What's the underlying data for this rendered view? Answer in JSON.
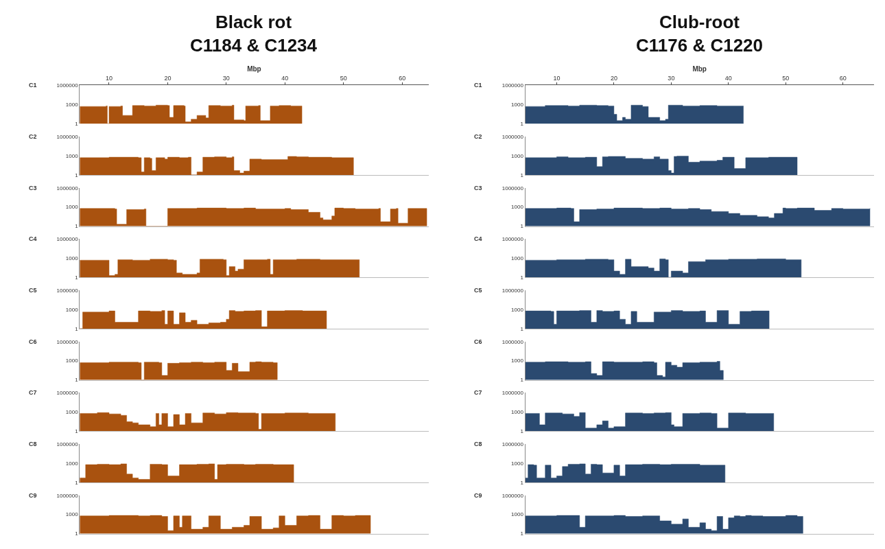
{
  "chart_data": [
    {
      "type": "area",
      "title": "Black rot\nC1184 & C1234",
      "xlabel": "Mbp",
      "ylabel": "C1",
      "xlim": [
        5,
        64.5
      ],
      "xticks": [
        10,
        20,
        30,
        40,
        50,
        60
      ],
      "ylim": [
        1,
        1000000
      ],
      "yticks": [
        1,
        1000,
        1000000
      ],
      "log": true,
      "x": [
        5,
        9.5,
        9.7,
        10,
        12,
        12.3,
        14,
        16,
        18,
        20,
        20.3,
        21,
        22.8,
        23,
        24,
        25,
        26.5,
        27,
        29,
        31,
        31.3,
        33,
        33.3,
        35.5,
        35.8,
        37.2,
        37.5,
        39,
        41,
        42.9
      ],
      "series": [
        {
          "color": "#a9520f",
          "values": [
            500,
            600,
            1,
            500,
            600,
            20,
            700,
            600,
            800,
            700,
            10,
            700,
            600,
            2,
            5,
            20,
            8,
            700,
            600,
            800,
            4,
            3,
            600,
            700,
            3,
            3,
            600,
            700,
            600,
            600
          ]
        }
      ]
    },
    {
      "type": "area",
      "title": "Club-root\nC1176 & C1220",
      "xlabel": "Mbp",
      "ylabel": "C1",
      "xlim": [
        4.5,
        65.4
      ],
      "xticks": [
        10,
        20,
        30,
        40,
        50,
        60
      ],
      "ylim": [
        1,
        1000000
      ],
      "yticks": [
        1,
        1000,
        1000000
      ],
      "log": true,
      "x": [
        4.5,
        8,
        12,
        14,
        17,
        19,
        20,
        20.5,
        21.5,
        22,
        23,
        25,
        26,
        28,
        29,
        29.5,
        32,
        35,
        38,
        42.6
      ],
      "series": [
        {
          "color": "#2b4a70",
          "values": [
            500,
            700,
            600,
            800,
            700,
            600,
            30,
            3,
            10,
            5,
            800,
            500,
            10,
            3,
            5,
            800,
            600,
            700,
            600,
            600
          ]
        }
      ]
    },
    {
      "type": "area",
      "ylabel": "C2",
      "xlim": [
        5,
        64.5
      ],
      "ylim": [
        1,
        1000000
      ],
      "yticks": [
        1,
        1000,
        1000000
      ],
      "log": true,
      "tick_labels": "y",
      "x": [
        5,
        10,
        15,
        15.5,
        16,
        17,
        17.3,
        18,
        19.5,
        20,
        22,
        23.5,
        24,
        25,
        26,
        28,
        30,
        31,
        31.3,
        32.3,
        33,
        34,
        36,
        40,
        40.5,
        42,
        44,
        48,
        51.7
      ],
      "series": [
        {
          "color": "#a9520f",
          "values": [
            500,
            600,
            500,
            3,
            500,
            400,
            5,
            500,
            300,
            600,
            500,
            600,
            1,
            3,
            600,
            700,
            500,
            700,
            5,
            2,
            4,
            300,
            250,
            250,
            800,
            700,
            600,
            500,
            500
          ]
        }
      ]
    },
    {
      "type": "area",
      "ylabel": "C2",
      "xlim": [
        4.5,
        65.4
      ],
      "ylim": [
        1,
        1000000
      ],
      "yticks": [
        1,
        1000,
        1000000
      ],
      "log": true,
      "tick_labels": "y",
      "x": [
        4.5,
        10,
        12,
        15,
        17,
        18,
        19,
        22,
        25,
        27,
        28,
        29.5,
        30,
        30.5,
        31,
        33,
        35,
        38,
        39,
        41,
        43,
        47,
        52
      ],
      "series": [
        {
          "color": "#2b4a70",
          "values": [
            500,
            700,
            500,
            600,
            20,
            700,
            800,
            400,
            300,
            700,
            300,
            5,
            2,
            800,
            900,
            100,
            150,
            200,
            600,
            10,
            500,
            600,
            500
          ]
        }
      ]
    },
    {
      "type": "area",
      "ylabel": "C3",
      "xlim": [
        5,
        64.5
      ],
      "ylim": [
        1,
        1000000
      ],
      "yticks": [
        1,
        1000,
        1000000
      ],
      "log": true,
      "tick_labels": "y",
      "x": [
        5,
        11,
        11.3,
        13,
        16,
        16.3,
        20,
        25,
        30,
        33,
        35,
        40,
        41,
        44,
        46,
        46.5,
        48,
        48.5,
        50,
        52,
        56,
        56.3,
        58,
        59,
        59.3,
        61,
        64.2
      ],
      "series": [
        {
          "color": "#a9520f",
          "values": [
            600,
            500,
            2,
            400,
            500,
            1,
            600,
            700,
            600,
            700,
            500,
            600,
            400,
            150,
            20,
            10,
            40,
            700,
            600,
            500,
            600,
            5,
            500,
            600,
            3,
            600,
            600
          ]
        }
      ]
    },
    {
      "type": "area",
      "ylabel": "C3",
      "xlim": [
        4.5,
        65.4
      ],
      "ylim": [
        1,
        1000000
      ],
      "yticks": [
        1,
        1000,
        1000000
      ],
      "log": true,
      "tick_labels": "y",
      "x": [
        4.5,
        10,
        12.5,
        13,
        14,
        17,
        20,
        25,
        28,
        30,
        33,
        35,
        37,
        40,
        42,
        45,
        47,
        48,
        49.5,
        50,
        52,
        55,
        58,
        60,
        64.7
      ],
      "series": [
        {
          "color": "#2b4a70",
          "values": [
            600,
            700,
            600,
            5,
            400,
            500,
            700,
            600,
            700,
            500,
            600,
            400,
            200,
            100,
            50,
            30,
            20,
            100,
            700,
            600,
            700,
            300,
            600,
            500,
            600
          ]
        }
      ]
    },
    {
      "type": "area",
      "ylabel": "C4",
      "xlim": [
        5,
        64.5
      ],
      "ylim": [
        1,
        1000000
      ],
      "yticks": [
        1,
        1000,
        1000000
      ],
      "log": true,
      "tick_labels": "y",
      "x": [
        5,
        9.5,
        10,
        11,
        11.5,
        14,
        17,
        20,
        21,
        21.5,
        22.5,
        25,
        25.5,
        29.5,
        30,
        30.5,
        31.5,
        32,
        33,
        37,
        37.5,
        38,
        42,
        46,
        50,
        52.7
      ],
      "series": [
        {
          "color": "#a9520f",
          "values": [
            500,
            500,
            2,
            3,
            600,
            500,
            700,
            600,
            500,
            5,
            3,
            5,
            700,
            600,
            2,
            50,
            10,
            20,
            600,
            700,
            3,
            600,
            700,
            600,
            600,
            500
          ]
        }
      ]
    },
    {
      "type": "area",
      "ylabel": "C4",
      "xlim": [
        4.5,
        65.4
      ],
      "ylim": [
        1,
        1000000
      ],
      "yticks": [
        1,
        1000,
        1000000
      ],
      "log": true,
      "tick_labels": "y",
      "x": [
        4.5,
        10,
        15,
        19,
        20,
        21,
        22,
        23,
        26,
        27,
        28,
        29,
        29.5,
        30,
        32,
        33,
        36,
        40,
        45,
        50,
        52.7
      ],
      "series": [
        {
          "color": "#2b4a70",
          "values": [
            500,
            600,
            700,
            600,
            10,
            3,
            700,
            50,
            30,
            10,
            800,
            600,
            1,
            10,
            5,
            300,
            600,
            700,
            800,
            600,
            500
          ]
        }
      ]
    },
    {
      "type": "area",
      "ylabel": "C5",
      "xlim": [
        5,
        64.5
      ],
      "ylim": [
        1,
        1000000
      ],
      "yticks": [
        1,
        1000,
        1000000
      ],
      "log": true,
      "tick_labels": "y",
      "x": [
        5,
        5.5,
        10,
        11,
        15,
        17,
        19,
        19.5,
        20,
        21,
        22,
        23,
        24,
        25,
        27,
        29,
        30,
        30.5,
        31.5,
        33,
        35,
        36,
        37,
        40,
        43,
        47.1
      ],
      "series": [
        {
          "color": "#a9520f",
          "values": [
            1,
            400,
            600,
            10,
            600,
            500,
            700,
            5,
            600,
            5,
            300,
            10,
            20,
            5,
            8,
            10,
            30,
            700,
            500,
            600,
            700,
            2,
            600,
            700,
            600,
            400
          ]
        }
      ]
    },
    {
      "type": "area",
      "ylabel": "C5",
      "xlim": [
        4.5,
        65.4
      ],
      "ylim": [
        1,
        1000000
      ],
      "yticks": [
        1,
        1000,
        1000000
      ],
      "log": true,
      "tick_labels": "y",
      "x": [
        4.5,
        9,
        9.5,
        10,
        14,
        16,
        17,
        18,
        20,
        21,
        22,
        23,
        24,
        27,
        30,
        32,
        35,
        36,
        38,
        40,
        42,
        44,
        47.1
      ],
      "series": [
        {
          "color": "#2b4a70",
          "values": [
            600,
            500,
            5,
            600,
            700,
            10,
            700,
            500,
            600,
            30,
            5,
            500,
            10,
            400,
            700,
            500,
            600,
            10,
            700,
            5,
            500,
            600,
            500
          ]
        }
      ]
    },
    {
      "type": "area",
      "ylabel": "C6",
      "xlim": [
        5,
        64.5
      ],
      "ylim": [
        1,
        1000000
      ],
      "yticks": [
        1,
        1000,
        1000000
      ],
      "log": true,
      "tick_labels": "y",
      "x": [
        5,
        10,
        15,
        15.5,
        16,
        18.5,
        19,
        20,
        22,
        24,
        26,
        28,
        30,
        31,
        32,
        34,
        35,
        36,
        38,
        38.7
      ],
      "series": [
        {
          "color": "#a9520f",
          "values": [
            500,
            600,
            500,
            1,
            600,
            500,
            5,
            400,
            500,
            600,
            500,
            600,
            30,
            400,
            20,
            600,
            700,
            600,
            500,
            3
          ]
        }
      ]
    },
    {
      "type": "area",
      "ylabel": "C6",
      "xlim": [
        4.5,
        65.4
      ],
      "ylim": [
        1,
        1000000
      ],
      "yticks": [
        1,
        1000,
        1000000
      ],
      "log": true,
      "tick_labels": "y",
      "x": [
        4.5,
        8,
        12,
        15,
        16,
        17,
        18,
        20,
        25,
        27,
        27.5,
        28.5,
        29,
        30,
        31,
        32,
        35,
        38,
        38.5,
        39.1
      ],
      "series": [
        {
          "color": "#2b4a70",
          "values": [
            600,
            700,
            600,
            700,
            10,
            5,
            700,
            600,
            700,
            500,
            5,
            3,
            600,
            200,
            100,
            500,
            600,
            800,
            30,
            10
          ]
        }
      ]
    },
    {
      "type": "area",
      "ylabel": "C7",
      "xlim": [
        5,
        64.5
      ],
      "ylim": [
        1,
        1000000
      ],
      "yticks": [
        1,
        1000,
        1000000
      ],
      "log": true,
      "tick_labels": "y",
      "x": [
        5,
        8,
        10,
        12,
        13,
        14,
        15,
        17,
        18,
        18.5,
        19,
        20,
        21,
        22,
        23,
        24,
        26,
        28,
        30,
        32,
        35,
        35.5,
        36,
        40,
        44,
        48.6
      ],
      "series": [
        {
          "color": "#a9520f",
          "values": [
            600,
            800,
            500,
            300,
            30,
            20,
            10,
            5,
            600,
            10,
            600,
            5,
            400,
            10,
            600,
            20,
            700,
            500,
            800,
            700,
            600,
            2,
            600,
            700,
            600,
            500
          ]
        }
      ]
    },
    {
      "type": "area",
      "ylabel": "C7",
      "xlim": [
        4.5,
        65.4
      ],
      "ylim": [
        1,
        1000000
      ],
      "yticks": [
        1,
        1000,
        1000000
      ],
      "log": true,
      "tick_labels": "y",
      "x": [
        4.5,
        7,
        8,
        11,
        13,
        14,
        15,
        17,
        18,
        19,
        20,
        22,
        25,
        27,
        29,
        30,
        30.5,
        32,
        35,
        37,
        38,
        40,
        43,
        47.9
      ],
      "series": [
        {
          "color": "#2b4a70",
          "values": [
            600,
            10,
            700,
            500,
            200,
            800,
            3,
            10,
            40,
            3,
            5,
            700,
            600,
            700,
            800,
            10,
            5,
            600,
            700,
            600,
            3,
            700,
            600,
            400
          ]
        }
      ]
    },
    {
      "type": "area",
      "ylabel": "C8",
      "xlim": [
        5,
        64.5
      ],
      "ylim": [
        1,
        1000000
      ],
      "yticks": [
        1,
        1000,
        1000000
      ],
      "log": true,
      "tick_labels": "y",
      "x": [
        5,
        6,
        8,
        10,
        12,
        13,
        14,
        15,
        17,
        19,
        20,
        22,
        25,
        27,
        28,
        28.5,
        30,
        33,
        35,
        38,
        41.5
      ],
      "series": [
        {
          "color": "#a9520f",
          "values": [
            5,
            600,
            700,
            600,
            800,
            20,
            5,
            3,
            700,
            600,
            10,
            600,
            700,
            800,
            3,
            600,
            700,
            600,
            700,
            600,
            600
          ]
        }
      ]
    },
    {
      "type": "area",
      "ylabel": "C8",
      "xlim": [
        4.5,
        65.4
      ],
      "ylim": [
        1,
        1000000
      ],
      "yticks": [
        1,
        1000,
        1000000
      ],
      "log": true,
      "tick_labels": "y",
      "x": [
        4.5,
        5,
        6,
        6.5,
        8,
        9,
        10,
        11,
        12,
        14,
        15,
        16,
        17,
        18,
        20,
        21,
        22,
        25,
        28,
        30,
        35,
        39.4
      ],
      "series": [
        {
          "color": "#2b4a70",
          "values": [
            5,
            600,
            500,
            5,
            500,
            5,
            10,
            300,
            700,
            800,
            20,
            700,
            600,
            30,
            500,
            10,
            600,
            700,
            600,
            700,
            500,
            400
          ]
        }
      ]
    },
    {
      "type": "area",
      "ylabel": "C9",
      "xlim": [
        5,
        64.5
      ],
      "ylim": [
        1,
        1000000
      ],
      "yticks": [
        1,
        1000,
        1000000
      ],
      "log": true,
      "tick_labels": "y",
      "x": [
        5,
        10,
        15,
        17,
        19,
        20,
        21,
        22,
        22.5,
        24,
        26,
        27,
        29,
        31,
        33,
        34,
        36,
        38,
        39,
        40,
        42,
        44,
        46,
        48,
        50,
        52,
        54.6
      ],
      "series": [
        {
          "color": "#a9520f",
          "values": [
            600,
            700,
            600,
            700,
            500,
            3,
            600,
            10,
            600,
            5,
            10,
            600,
            5,
            10,
            20,
            500,
            5,
            8,
            600,
            20,
            600,
            700,
            5,
            700,
            600,
            700,
            600
          ]
        }
      ]
    },
    {
      "type": "area",
      "ylabel": "C9",
      "xlim": [
        4.5,
        65.4
      ],
      "ylim": [
        1,
        1000000
      ],
      "yticks": [
        1,
        1000,
        1000000
      ],
      "log": true,
      "tick_labels": "y",
      "x": [
        4.5,
        10,
        14,
        15,
        20,
        22,
        25,
        28,
        30,
        32,
        33,
        35,
        36,
        37,
        38,
        39,
        40,
        41,
        42,
        43,
        44,
        46,
        50,
        52,
        53
      ],
      "series": [
        {
          "color": "#2b4a70",
          "values": [
            600,
            700,
            10,
            600,
            700,
            500,
            600,
            100,
            30,
            200,
            10,
            50,
            5,
            3,
            500,
            5,
            300,
            600,
            500,
            700,
            600,
            500,
            700,
            500,
            2
          ]
        }
      ]
    }
  ]
}
